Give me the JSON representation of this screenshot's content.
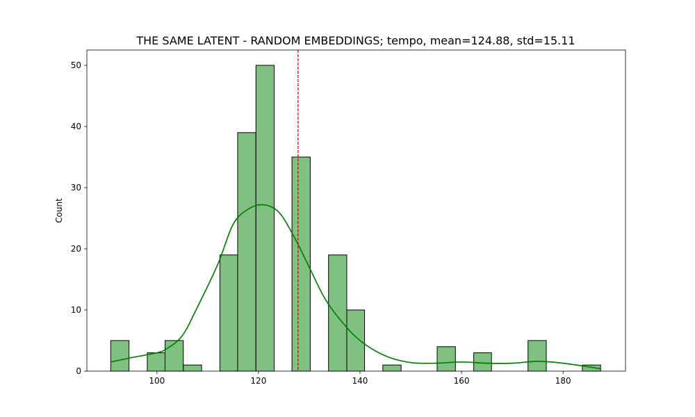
{
  "chart_data": {
    "type": "histogram",
    "title": "THE SAME LATENT - RANDOM EMBEDDINGS; tempo, mean=124.88, std=15.11",
    "xlabel": "",
    "ylabel": "Count",
    "xlim": [
      86.2,
      192.3
    ],
    "ylim": [
      0,
      52.5
    ],
    "x_ticks": [
      100,
      120,
      140,
      160,
      180
    ],
    "y_ticks": [
      0,
      10,
      20,
      30,
      40,
      50
    ],
    "bins": [
      {
        "x0": 90.9,
        "x1": 94.5,
        "count": 5
      },
      {
        "x0": 94.5,
        "x1": 98.1,
        "count": 0
      },
      {
        "x0": 98.1,
        "x1": 101.6,
        "count": 3
      },
      {
        "x0": 101.6,
        "x1": 105.2,
        "count": 5
      },
      {
        "x0": 105.2,
        "x1": 108.8,
        "count": 1
      },
      {
        "x0": 108.8,
        "x1": 112.4,
        "count": 0
      },
      {
        "x0": 112.4,
        "x1": 115.9,
        "count": 19
      },
      {
        "x0": 115.9,
        "x1": 119.5,
        "count": 39
      },
      {
        "x0": 119.5,
        "x1": 123.1,
        "count": 50
      },
      {
        "x0": 123.1,
        "x1": 126.6,
        "count": 0
      },
      {
        "x0": 126.6,
        "x1": 130.2,
        "count": 35
      },
      {
        "x0": 130.2,
        "x1": 133.8,
        "count": 0
      },
      {
        "x0": 133.8,
        "x1": 137.4,
        "count": 19
      },
      {
        "x0": 137.4,
        "x1": 140.9,
        "count": 10
      },
      {
        "x0": 140.9,
        "x1": 144.5,
        "count": 0
      },
      {
        "x0": 144.5,
        "x1": 148.1,
        "count": 1
      },
      {
        "x0": 148.1,
        "x1": 151.7,
        "count": 0
      },
      {
        "x0": 151.7,
        "x1": 155.2,
        "count": 0
      },
      {
        "x0": 155.2,
        "x1": 158.8,
        "count": 4
      },
      {
        "x0": 158.8,
        "x1": 162.4,
        "count": 0
      },
      {
        "x0": 162.4,
        "x1": 165.9,
        "count": 3
      },
      {
        "x0": 165.9,
        "x1": 169.5,
        "count": 0
      },
      {
        "x0": 169.5,
        "x1": 173.1,
        "count": 0
      },
      {
        "x0": 173.1,
        "x1": 176.7,
        "count": 5
      },
      {
        "x0": 176.7,
        "x1": 180.2,
        "count": 0
      },
      {
        "x0": 180.2,
        "x1": 183.8,
        "count": 0
      },
      {
        "x0": 183.8,
        "x1": 187.4,
        "count": 1
      }
    ],
    "kde": {
      "x": [
        90.9,
        95,
        100,
        102,
        105,
        108,
        112,
        115,
        118,
        121,
        124,
        127,
        130,
        133,
        136,
        140,
        145,
        150,
        155,
        160,
        165,
        170,
        175,
        180,
        185,
        187.4
      ],
      "y": [
        1.5,
        2.2,
        3.0,
        3.7,
        5.8,
        10.5,
        17.5,
        24.0,
        26.5,
        27.2,
        26.0,
        22.0,
        17.0,
        12.0,
        8.5,
        5.0,
        2.5,
        1.4,
        1.3,
        1.5,
        1.3,
        1.3,
        1.6,
        1.3,
        0.7,
        0.4
      ]
    },
    "reference_line": {
      "x": 127.8
    },
    "colors": {
      "bar_fill": "#80c080",
      "bar_edge": "#000000",
      "kde_line": "#008000",
      "reference_line": "#cc0000"
    },
    "grid": false,
    "legend": "none"
  }
}
